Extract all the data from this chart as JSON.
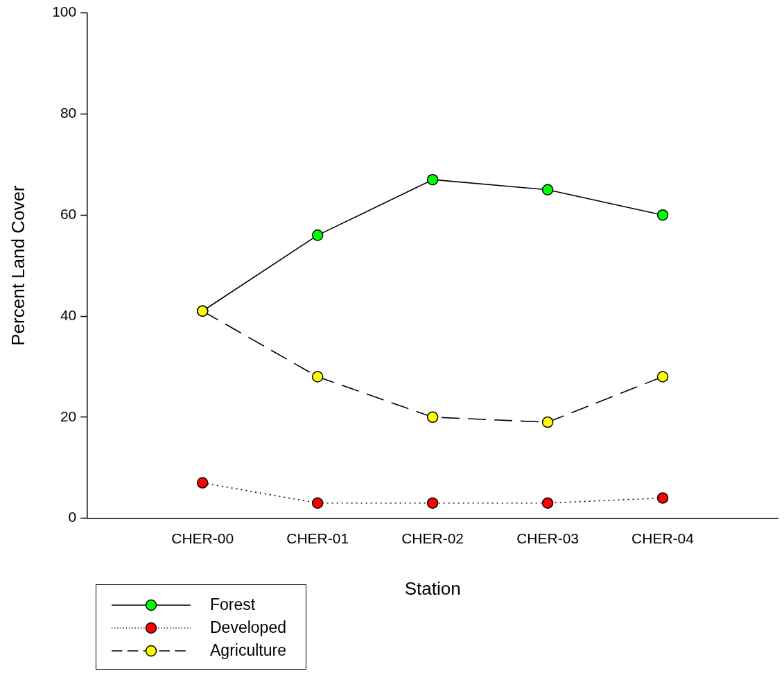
{
  "chart_data": {
    "type": "line",
    "xlabel": "Station",
    "ylabel": "Percent Land Cover",
    "categories": [
      "CHER-00",
      "CHER-01",
      "CHER-02",
      "CHER-03",
      "CHER-04"
    ],
    "ylim": [
      0,
      100
    ],
    "yticks": [
      0,
      20,
      40,
      60,
      80,
      100
    ],
    "grid": false,
    "legend": "bottom left",
    "marker": "circle",
    "series": [
      {
        "name": "Forest",
        "color": "#00ff00",
        "line_style": "solid",
        "values": [
          41,
          56,
          67,
          65,
          60
        ]
      },
      {
        "name": "Developed",
        "color": "#ff0000",
        "line_style": "dotted",
        "values": [
          7,
          3,
          3,
          3,
          4
        ]
      },
      {
        "name": "Agriculture",
        "color": "#ffff00",
        "line_style": "dashed",
        "values": [
          41,
          28,
          20,
          19,
          28
        ]
      }
    ]
  }
}
